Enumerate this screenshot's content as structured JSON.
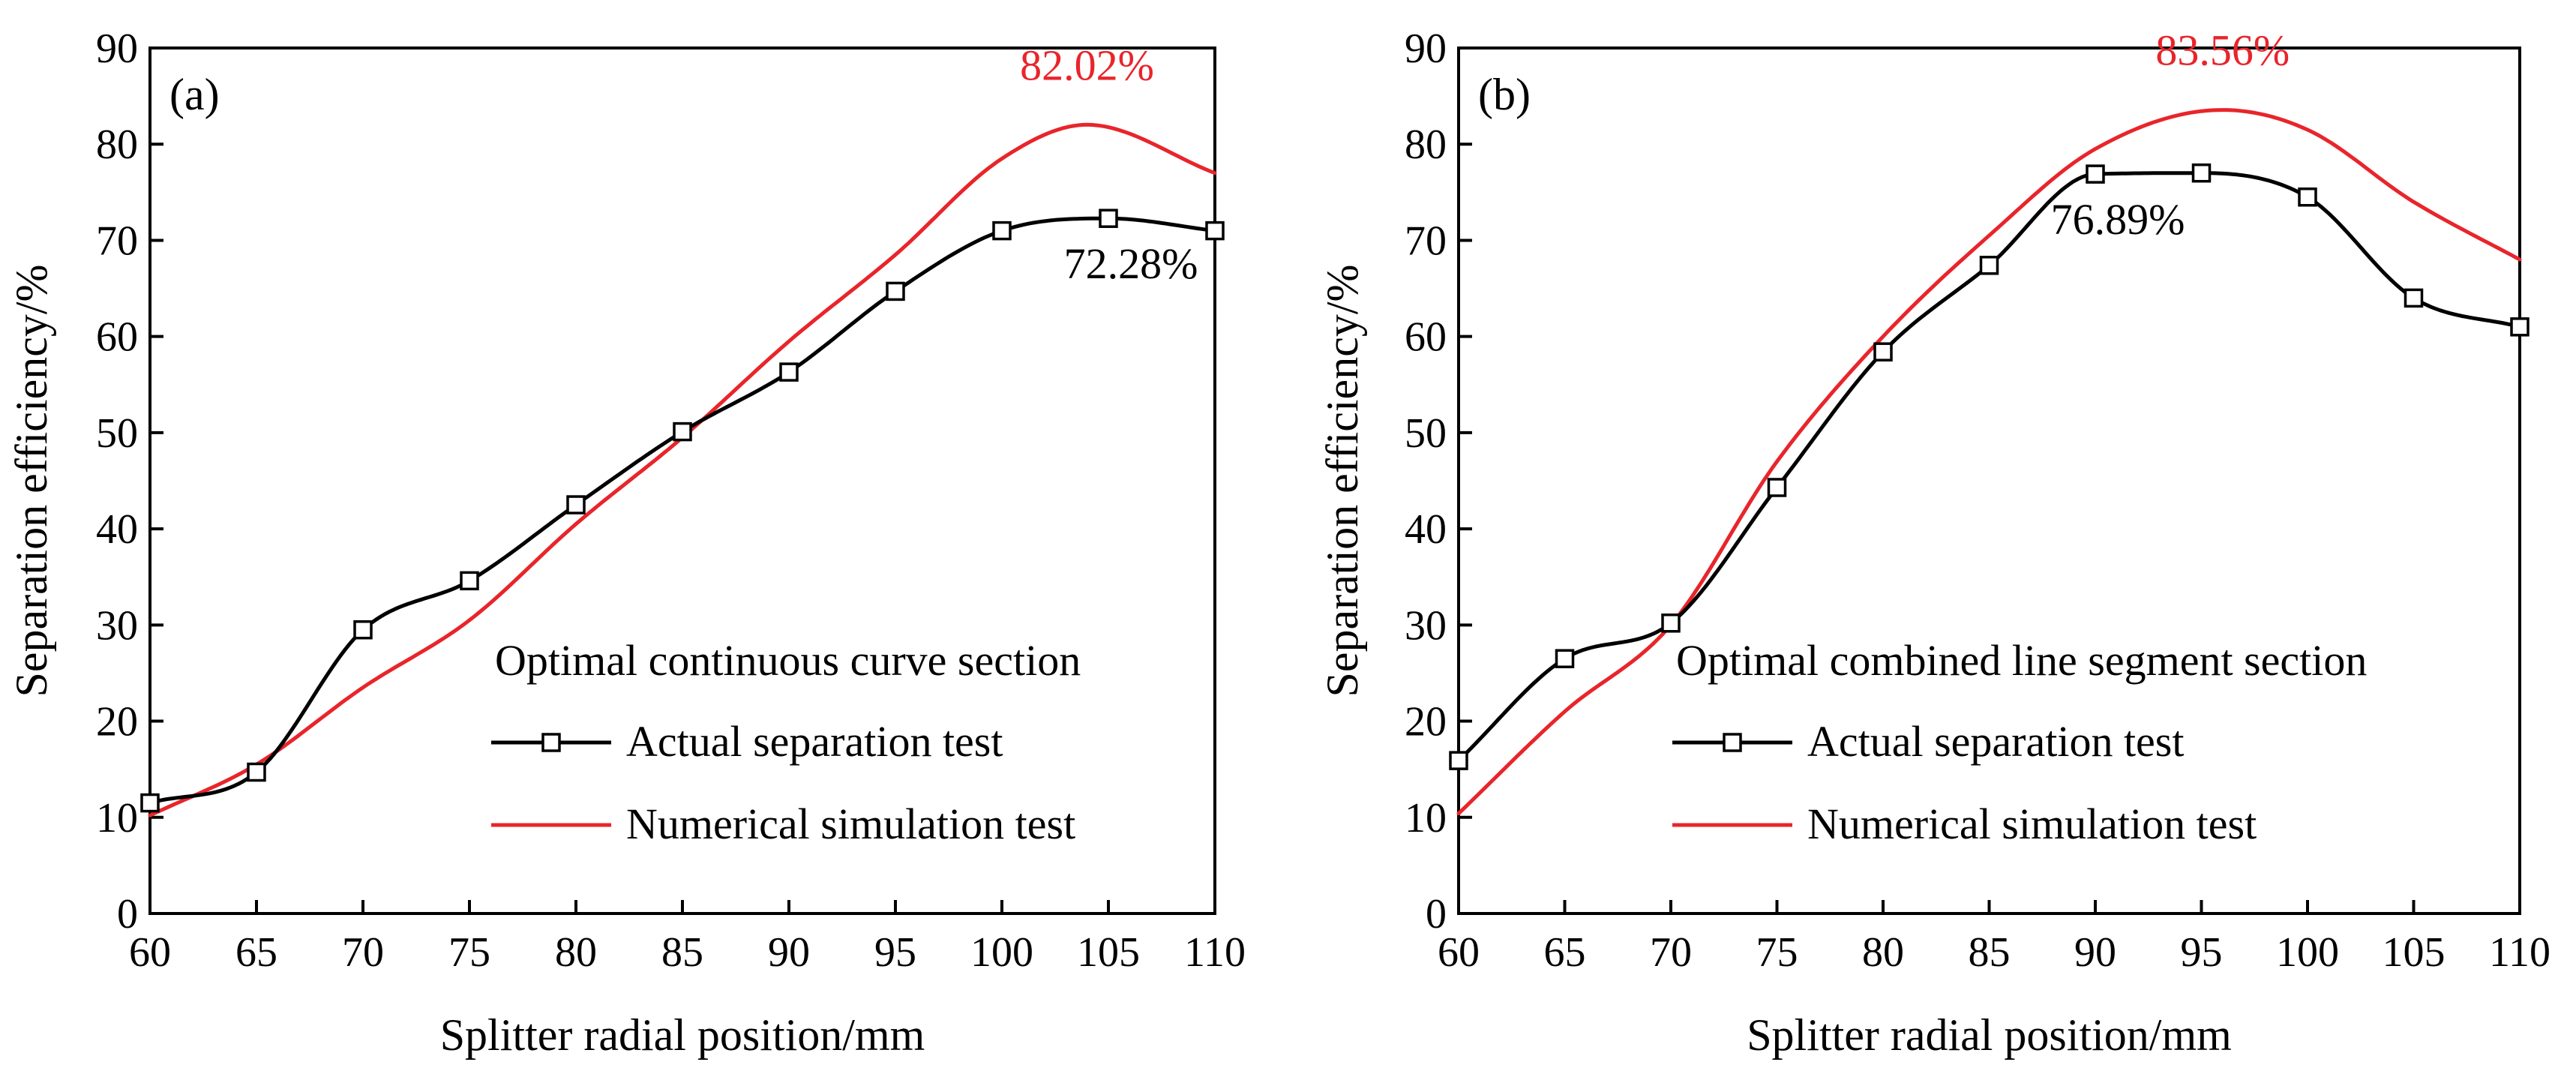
{
  "chart_data": [
    {
      "type": "line",
      "panel_label": "(a)",
      "xlabel": "Splitter radial position/mm",
      "ylabel": "Separation efficiency/%",
      "xlim": [
        60,
        110
      ],
      "ylim": [
        0,
        90
      ],
      "x_ticks": [
        60,
        65,
        70,
        75,
        80,
        85,
        90,
        95,
        100,
        105,
        110
      ],
      "y_ticks": [
        0,
        10,
        20,
        30,
        40,
        50,
        60,
        70,
        80,
        90
      ],
      "legend_title": "Optimal continuous curve section",
      "series": [
        {
          "name": "Actual separation test",
          "color": "#000000",
          "marker": "open-square",
          "x": [
            60,
            65,
            70,
            75,
            80,
            85,
            90,
            95,
            100,
            105,
            110
          ],
          "y": [
            11.5,
            14.7,
            29.5,
            34.6,
            42.5,
            50.1,
            56.3,
            64.7,
            71.0,
            72.28,
            71.0
          ]
        },
        {
          "name": "Numerical simulation test",
          "color": "#e8252b",
          "marker": "none",
          "x": [
            60,
            65,
            70,
            75,
            80,
            85,
            90,
            95,
            100,
            104,
            110
          ],
          "y": [
            10.2,
            15.5,
            23.5,
            30.5,
            40.5,
            49.5,
            59.5,
            68.5,
            78.5,
            82.02,
            77.0
          ]
        }
      ],
      "annotations": [
        {
          "text": "82.02%",
          "color": "#e8252b",
          "x": 104,
          "y": 82.02
        },
        {
          "text": "72.28%",
          "color": "#000000",
          "x": 105,
          "y": 72.28
        }
      ]
    },
    {
      "type": "line",
      "panel_label": "(b)",
      "xlabel": "Splitter radial position/mm",
      "ylabel": "Separation efficiency/%",
      "xlim": [
        60,
        110
      ],
      "ylim": [
        0,
        90
      ],
      "x_ticks": [
        60,
        65,
        70,
        75,
        80,
        85,
        90,
        95,
        100,
        105,
        110
      ],
      "y_ticks": [
        0,
        10,
        20,
        30,
        40,
        50,
        60,
        70,
        80,
        90
      ],
      "legend_title": "Optimal combined line segment section",
      "series": [
        {
          "name": "Actual separation test",
          "color": "#000000",
          "marker": "open-square",
          "x": [
            60,
            65,
            70,
            75,
            80,
            85,
            90,
            95,
            100,
            105,
            110
          ],
          "y": [
            15.9,
            26.5,
            30.2,
            44.3,
            58.4,
            67.4,
            76.89,
            77.0,
            74.5,
            64.0,
            61.0
          ]
        },
        {
          "name": "Numerical simulation test",
          "color": "#e8252b",
          "marker": "none",
          "x": [
            60,
            65,
            70,
            75,
            80,
            85,
            90,
            96,
            100,
            105,
            110
          ],
          "y": [
            10.4,
            21.0,
            30.0,
            47.0,
            60.0,
            70.5,
            79.5,
            83.56,
            81.5,
            74.0,
            68.0
          ]
        }
      ],
      "annotations": [
        {
          "text": "83.56%",
          "color": "#e8252b",
          "x": 96,
          "y": 83.56
        },
        {
          "text": "76.89%",
          "color": "#000000",
          "x": 90,
          "y": 76.89
        }
      ]
    }
  ]
}
